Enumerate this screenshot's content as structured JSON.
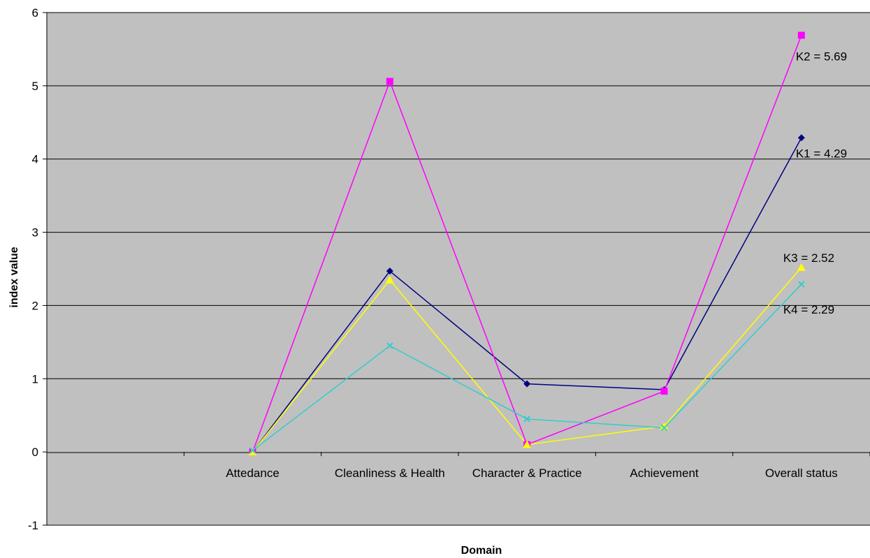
{
  "chart_data": {
    "type": "line",
    "title": "",
    "xlabel": "Domain",
    "ylabel": "index value",
    "ylim": [
      -1,
      6
    ],
    "yticks": [
      -1,
      0,
      1,
      2,
      3,
      4,
      5,
      6
    ],
    "grid": "horizontal major gridlines",
    "legend": "none",
    "plot_background": "#c0c0c0",
    "categories": [
      "",
      "Attedance",
      "Cleanliness & Health",
      "Character & Practice",
      "Achievement",
      "Overall status"
    ],
    "series": [
      {
        "name": "K1",
        "color": "#000080",
        "marker": "diamond",
        "values": [
          null,
          0,
          2.47,
          0.93,
          0.85,
          4.29
        ]
      },
      {
        "name": "K2",
        "color": "#ff00ff",
        "marker": "square",
        "values": [
          null,
          0,
          5.06,
          0.1,
          0.83,
          5.69
        ]
      },
      {
        "name": "K3",
        "color": "#ffff00",
        "marker": "triangle",
        "values": [
          null,
          0,
          2.35,
          0.1,
          0.35,
          2.52
        ]
      },
      {
        "name": "K4",
        "color": "#33cccc",
        "marker": "x",
        "values": [
          null,
          0.02,
          1.45,
          0.45,
          0.33,
          2.29
        ]
      }
    ],
    "annotations": [
      {
        "series": "K2",
        "text": "K2 = 5.69"
      },
      {
        "series": "K1",
        "text": "K1 = 4.29"
      },
      {
        "series": "K3",
        "text": "K3 = 2.52"
      },
      {
        "series": "K4",
        "text": "K4 = 2.29"
      }
    ]
  }
}
